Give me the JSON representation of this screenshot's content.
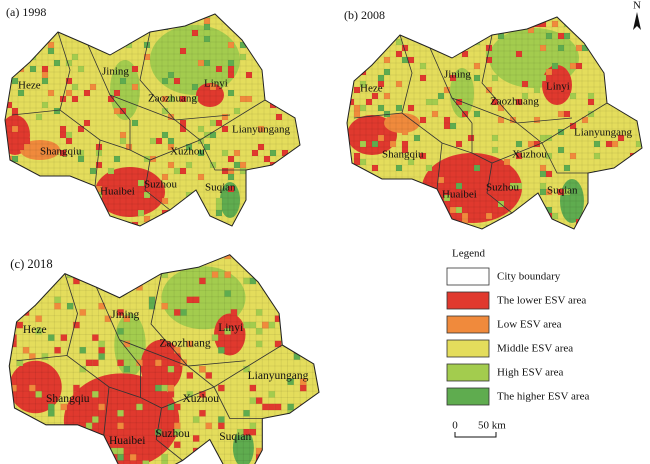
{
  "north": "N",
  "panels": [
    {
      "label": "(a) 1998",
      "cities": [
        "Heze",
        "Jining",
        "Zaozhuang",
        "Linyi",
        "Lianyungang",
        "Shangqiu",
        "Xuzhou",
        "Huaibei",
        "Suzhou",
        "Suqian"
      ]
    },
    {
      "label": "(b) 2008",
      "cities": [
        "Heze",
        "Jining",
        "Zaozhuang",
        "Linyi",
        "Lianyungang",
        "Shangqiu",
        "Xuzhou",
        "Huaibei",
        "Suzhou",
        "Suqian"
      ]
    },
    {
      "label": "(c) 2018",
      "cities": [
        "Heze",
        "Jining",
        "Zaozhuang",
        "Linyi",
        "Lianyungang",
        "Shangqiu",
        "Xuzhou",
        "Huaibei",
        "Suzhou",
        "Suqian"
      ]
    }
  ],
  "legend": {
    "title": "Legend",
    "items": [
      {
        "label": "City boundary",
        "color": "#ffffff"
      },
      {
        "label": "The lower ESV area",
        "color": "#e0392e"
      },
      {
        "label": "Low ESV area",
        "color": "#f08a3c"
      },
      {
        "label": "Middle ESV area",
        "color": "#e4dd5c"
      },
      {
        "label": "High ESV area",
        "color": "#a3cc4e"
      },
      {
        "label": "The higher ESV area",
        "color": "#5fac4f"
      }
    ]
  },
  "scale_bar": {
    "zero": "0",
    "length": "50 km"
  }
}
